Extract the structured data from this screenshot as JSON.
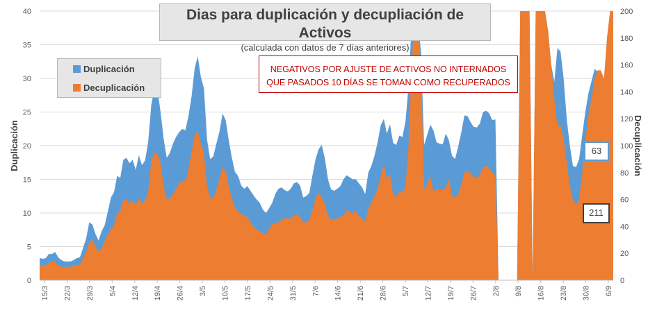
{
  "chart_data": {
    "type": "area",
    "title": "Dias para duplicación y decupliación de Activos",
    "subtitle": "(calculada con datos de 7 días anteriores)",
    "ylabel_left": "Duplicación",
    "ylabel_right": "Decuplicación",
    "ylim_left": [
      0,
      40
    ],
    "ylim_right": [
      0,
      200
    ],
    "yticks_left": [
      "0",
      "5",
      "10",
      "15",
      "20",
      "25",
      "30",
      "35",
      "40"
    ],
    "yticks_right": [
      "0",
      "20",
      "40",
      "60",
      "80",
      "100",
      "120",
      "140",
      "160",
      "180",
      "200"
    ],
    "x_tick_labels": [
      "15/3",
      "22/3",
      "29/3",
      "5/4",
      "12/4",
      "19/4",
      "26/4",
      "3/5",
      "10/5",
      "17/5",
      "24/5",
      "31/5",
      "7/6",
      "14/6",
      "21/6",
      "28/6",
      "5/7",
      "12/7",
      "19/7",
      "26/7",
      "2/8",
      "9/8",
      "16/8",
      "23/8",
      "30/8",
      "6/9"
    ],
    "series": [
      {
        "name": "Duplicación",
        "axis": "left",
        "color": "#5b9bd5",
        "values": [
          3.3,
          3.2,
          3.3,
          3.9,
          3.9,
          4.2,
          3.4,
          3.0,
          2.8,
          2.8,
          2.8,
          3.0,
          3.3,
          3.4,
          4.8,
          6.2,
          8.6,
          8.3,
          6.9,
          5.9,
          7.3,
          8.2,
          10.2,
          12.3,
          13.1,
          15.5,
          15.2,
          17.9,
          18.2,
          17.4,
          17.9,
          16.4,
          18.6,
          17.1,
          17.8,
          20.5,
          26.0,
          28.5,
          28.4,
          25.0,
          21.0,
          18.2,
          18.9,
          20.3,
          21.3,
          22.0,
          22.5,
          22.3,
          24.4,
          27.3,
          31.5,
          33.3,
          30.2,
          28.5,
          20.9,
          18.0,
          18.4,
          20.3,
          22.1,
          24.8,
          23.8,
          20.8,
          18.2,
          16.1,
          15.5,
          14.1,
          13.6,
          14.0,
          13.3,
          12.6,
          12.0,
          11.5,
          10.5,
          10.0,
          10.7,
          11.5,
          12.8,
          13.6,
          13.8,
          13.4,
          13.2,
          13.6,
          14.4,
          14.6,
          14.1,
          12.3,
          12.5,
          13.0,
          15.6,
          18.0,
          19.5,
          20.1,
          18.1,
          15.0,
          13.5,
          13.3,
          13.6,
          14.0,
          15.0,
          15.6,
          15.3,
          15.0,
          15.0,
          14.4,
          13.8,
          12.8,
          16.0,
          17.0,
          18.5,
          20.5,
          23.0,
          24.0,
          21.8,
          23.2,
          20.4,
          20.1,
          21.5,
          21.3,
          23.6,
          29.0,
          38.4,
          42.0,
          38.5,
          34.0,
          20.1,
          21.6,
          23.1,
          22.3,
          20.5,
          20.3,
          20.2,
          21.8,
          20.8,
          18.5,
          18.0,
          19.9,
          22.0,
          24.5,
          24.4,
          23.5,
          22.8,
          22.7,
          23.3,
          25.0,
          25.2,
          24.8,
          23.8,
          23.9,
          0,
          0,
          0,
          0,
          0,
          0,
          0,
          42,
          42,
          42,
          42,
          0,
          42,
          42,
          42,
          42,
          37.0,
          32.0,
          29.5,
          34.5,
          34.0,
          30.0,
          24.0,
          20.0,
          17.0,
          16.8,
          18.0,
          21.6,
          25.0,
          27.8,
          29.6,
          31.4,
          31.0,
          29.0,
          28.5,
          36.0,
          40.0,
          42.0
        ]
      },
      {
        "name": "Decuplicación",
        "axis": "right",
        "color": "#ed7d31",
        "values": [
          11,
          11,
          11,
          13,
          14,
          14,
          11,
          10,
          10,
          10,
          10,
          11,
          11,
          12,
          16,
          21,
          28,
          30,
          25,
          21,
          24,
          29,
          34,
          38,
          41,
          50,
          51,
          60,
          60,
          57,
          59,
          56,
          61,
          57,
          59,
          66,
          88,
          95,
          94,
          87,
          70,
          60,
          61,
          64,
          68,
          72,
          74,
          73,
          83,
          95,
          108,
          111,
          102,
          94,
          70,
          61,
          61,
          67,
          75,
          84,
          81,
          70,
          61,
          54,
          51,
          49,
          48,
          47,
          43,
          40,
          38,
          36,
          35,
          34,
          38,
          42,
          42,
          43,
          45,
          46,
          46,
          46,
          48,
          49,
          47,
          43,
          43,
          45,
          52,
          61,
          65,
          62,
          56,
          48,
          45,
          45,
          46,
          47,
          48,
          52,
          51,
          50,
          51,
          48,
          46,
          43,
          53,
          58,
          62,
          68,
          77,
          86,
          75,
          79,
          64,
          62,
          66,
          65,
          70,
          100,
          160,
          210,
          190,
          160,
          67,
          72,
          77,
          66,
          68,
          67,
          67,
          69,
          75,
          63,
          61,
          64,
          71,
          80,
          81,
          79,
          77,
          76,
          78,
          84,
          85,
          83,
          80,
          78,
          0,
          0,
          0,
          0,
          0,
          0,
          0,
          210,
          210,
          210,
          210,
          0,
          210,
          210,
          210,
          210,
          185,
          160,
          135,
          115,
          115,
          105,
          88,
          70,
          60,
          56,
          60,
          80,
          103,
          123,
          135,
          150,
          156,
          156,
          150,
          180,
          200,
          210
        ]
      }
    ],
    "legend": [
      "Duplicación",
      "Decuplicación"
    ],
    "annotation": [
      "NEGATIVOS POR AJUSTE DE ACTIVOS NO INTERNADOS",
      "QUE PASADOS 10 DÍAS SE TOMAN COMO RECUPERADOS"
    ],
    "data_labels": [
      {
        "series": "Duplicación",
        "text": "63"
      },
      {
        "series": "Decuplicación",
        "text": "211"
      }
    ]
  }
}
